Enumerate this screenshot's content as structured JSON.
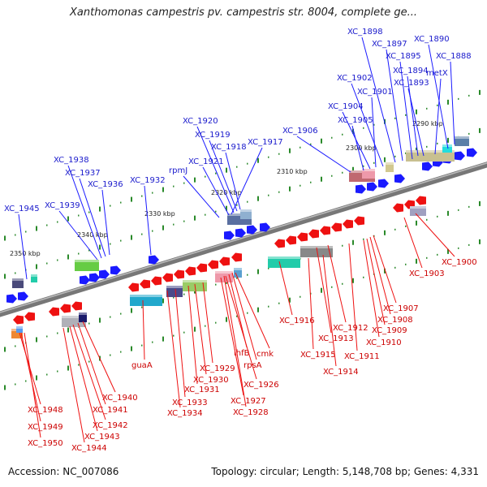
{
  "title": "Xanthomonas campestris pv. campestris str. 8004, complete ge...",
  "footer": {
    "accession": "Accession: NC_007086",
    "topology": "Topology: circular; Length: 5,148,708 bp; Genes: 4,331"
  },
  "colors": {
    "forward_gene": "#1a1aff",
    "reverse_gene": "#ee1111",
    "forward_label": "#1a1acc",
    "reverse_label": "#cc0000",
    "backbone": "#777777",
    "tick": "#2a8a2a"
  },
  "scale_labels": [
    "2290 kbp",
    "2300 kbp",
    "2310 kbp",
    "2320 kbp",
    "2330 kbp",
    "2340 kbp",
    "2350 kbp"
  ],
  "top_genes": [
    "XC_1898",
    "XC_1897",
    "XC_1890",
    "XC_1895",
    "XC_1888",
    "XC_1894",
    "metX",
    "XC_1902",
    "XC_1893",
    "XC_1901",
    "XC_1904",
    "XC_1905",
    "XC_1906",
    "XC_1920",
    "XC_1919",
    "XC_1918",
    "XC_1917",
    "rpmJ",
    "XC_1921",
    "XC_1938",
    "XC_1937",
    "XC_1936",
    "XC_1932",
    "XC_1939",
    "XC_1945"
  ],
  "bottom_genes": [
    "XC_1900",
    "XC_1903",
    "XC_1907",
    "XC_1908",
    "XC_1909",
    "XC_1910",
    "XC_1911",
    "XC_1912",
    "XC_1913",
    "XC_1916",
    "XC_1915",
    "XC_1914",
    "cmk",
    "ihfB",
    "rpsA",
    "XC_1926",
    "XC_1927",
    "XC_1928",
    "XC_1929",
    "XC_1930",
    "XC_1931",
    "XC_1933",
    "XC_1934",
    "guaA",
    "XC_1940",
    "XC_1941",
    "XC_1942",
    "XC_1943",
    "XC_1944",
    "XC_1948",
    "XC_1949",
    "XC_1950"
  ]
}
